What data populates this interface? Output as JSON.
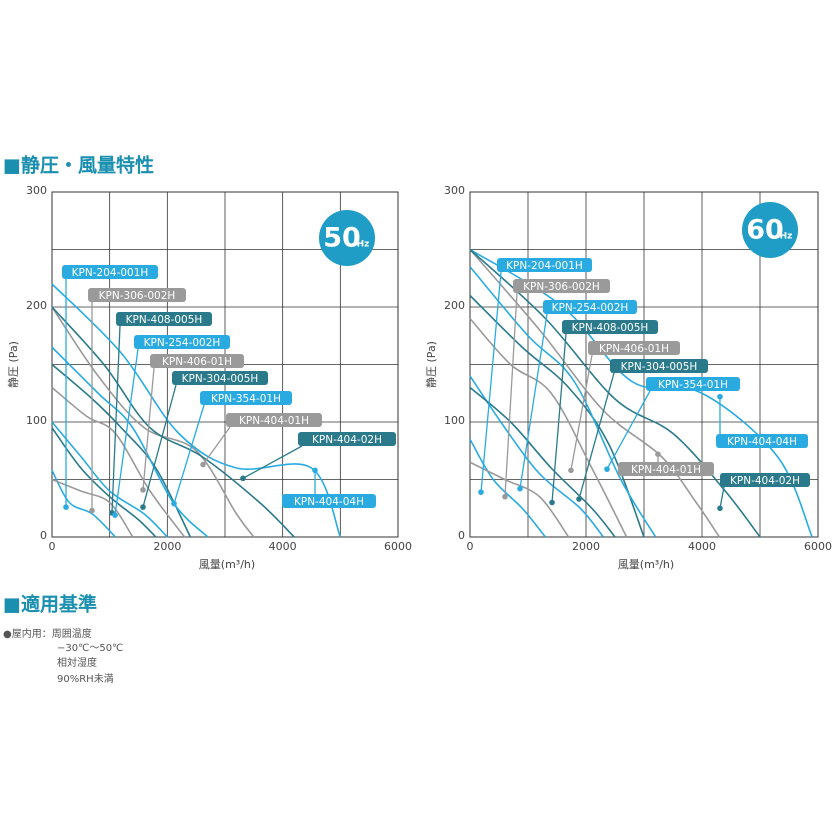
{
  "header": {
    "title": "■静圧・風量特性"
  },
  "chart_data": [
    {
      "type": "line",
      "badge": "50",
      "badge_unit": "Hz",
      "y_label": "静圧 (Pa)",
      "x_label": "風量(m³/h)",
      "xlim": [
        0,
        6000
      ],
      "ylim": [
        0,
        300
      ],
      "xticks": [
        0,
        2000,
        4000,
        6000
      ],
      "yticks": [
        0,
        100,
        200,
        300
      ],
      "xgrid": [
        1000,
        2000,
        3000,
        4000,
        5000
      ],
      "ygrid": [
        50,
        100,
        150,
        200,
        250
      ],
      "series": [
        {
          "name": "KPN-204-001H",
          "color": "#29abe2",
          "x": [
            0,
            300,
            700,
            1100
          ],
          "values": [
            58,
            30,
            20,
            0
          ],
          "marker": {
            "x": 243,
            "y": 26
          }
        },
        {
          "name": "KPN-306-002H",
          "color": "#9a9a9a",
          "x": [
            0,
            500,
            1000,
            1400
          ],
          "values": [
            50,
            40,
            30,
            0
          ],
          "marker": {
            "x": 694,
            "y": 23
          }
        },
        {
          "name": "KPN-408-005H",
          "color": "#2a7a8c",
          "x": [
            0,
            500,
            1000,
            1500,
            1800
          ],
          "values": [
            95,
            60,
            35,
            15,
            0
          ],
          "marker": {
            "x": 1040,
            "y": 21
          }
        },
        {
          "name": "KPN-254-002H",
          "color": "#29abe2",
          "x": [
            0,
            500,
            1000,
            1600,
            2000
          ],
          "values": [
            100,
            70,
            40,
            20,
            0
          ],
          "marker": {
            "x": 1093,
            "y": 19
          }
        },
        {
          "name": "KPN-406-01H",
          "color": "#9a9a9a",
          "x": [
            0,
            600,
            1100,
            1700,
            2300
          ],
          "values": [
            130,
            105,
            90,
            40,
            0
          ],
          "marker": {
            "x": 1578,
            "y": 41
          }
        },
        {
          "name": "KPN-304-005H",
          "color": "#2a7a8c",
          "x": [
            0,
            700,
            1200,
            1800,
            2400
          ],
          "values": [
            150,
            120,
            95,
            60,
            0
          ],
          "marker": {
            "x": 1578,
            "y": 26
          }
        },
        {
          "name": "KPN-354-01H",
          "color": "#29abe2",
          "x": [
            0,
            800,
            1400,
            2100,
            2700
          ],
          "values": [
            165,
            125,
            95,
            30,
            0
          ],
          "marker": {
            "x": 2116,
            "y": 29
          }
        },
        {
          "name": "KPN-404-01H",
          "color": "#9a9a9a",
          "x": [
            0,
            800,
            1600,
            2500,
            3200,
            3500
          ],
          "values": [
            200,
            140,
            95,
            75,
            20,
            0
          ],
          "marker": {
            "x": 2619,
            "y": 63
          }
        },
        {
          "name": "KPN-404-02H",
          "color": "#2a7a8c",
          "x": [
            0,
            900,
            1700,
            2600,
            3600,
            4200
          ],
          "values": [
            200,
            150,
            95,
            70,
            30,
            0
          ],
          "marker": {
            "x": 3312,
            "y": 51
          }
        },
        {
          "name": "KPN-404-04H",
          "color": "#29abe2",
          "x": [
            0,
            1200,
            2200,
            3200,
            4500,
            5000
          ],
          "values": [
            220,
            160,
            90,
            60,
            60,
            0
          ],
          "marker": {
            "x": 4561,
            "y": 58
          }
        }
      ]
    },
    {
      "type": "line",
      "badge": "60",
      "badge_unit": "Hz",
      "y_label": "静圧 (Pa)",
      "x_label": "風量(m³/h)",
      "xlim": [
        0,
        6000
      ],
      "ylim": [
        0,
        300
      ],
      "xticks": [
        0,
        2000,
        4000,
        6000
      ],
      "yticks": [
        0,
        100,
        200,
        300
      ],
      "xgrid": [
        1000,
        2000,
        3000,
        4000,
        5000
      ],
      "ygrid": [
        50,
        100,
        150,
        200,
        250
      ],
      "series": [
        {
          "name": "KPN-204-001H",
          "color": "#29abe2",
          "x": [
            0,
            400,
            900,
            1300
          ],
          "values": [
            85,
            50,
            25,
            0
          ],
          "marker": {
            "x": 190,
            "y": 39
          }
        },
        {
          "name": "KPN-306-002H",
          "color": "#9a9a9a",
          "x": [
            0,
            600,
            1200,
            1700
          ],
          "values": [
            65,
            50,
            35,
            0
          ],
          "marker": {
            "x": 603,
            "y": 35
          }
        },
        {
          "name": "KPN-254-002H",
          "color": "#29abe2",
          "x": [
            0,
            600,
            1200,
            1900,
            2300
          ],
          "values": [
            140,
            95,
            55,
            25,
            0
          ],
          "marker": {
            "x": 862,
            "y": 42
          }
        },
        {
          "name": "KPN-408-005H",
          "color": "#2a7a8c",
          "x": [
            0,
            700,
            1400,
            2100,
            2500
          ],
          "values": [
            130,
            100,
            60,
            25,
            0
          ],
          "marker": {
            "x": 1414,
            "y": 30
          }
        },
        {
          "name": "KPN-406-01H",
          "color": "#9a9a9a",
          "x": [
            0,
            700,
            1400,
            2100,
            2700
          ],
          "values": [
            190,
            150,
            125,
            60,
            0
          ],
          "marker": {
            "x": 1741,
            "y": 58
          }
        },
        {
          "name": "KPN-304-005H",
          "color": "#2a7a8c",
          "x": [
            0,
            900,
            1700,
            2400,
            3000
          ],
          "values": [
            210,
            165,
            130,
            80,
            0
          ],
          "marker": {
            "x": 1879,
            "y": 33
          }
        },
        {
          "name": "KPN-354-01H",
          "color": "#29abe2",
          "x": [
            0,
            1000,
            1800,
            2600,
            3200
          ],
          "values": [
            235,
            175,
            135,
            50,
            0
          ],
          "marker": {
            "x": 2362,
            "y": 59
          }
        },
        {
          "name": "KPN-404-04H",
          "color": "#29abe2",
          "x": [
            0,
            1600,
            2800,
            4000,
            5300,
            5900
          ],
          "values": [
            250,
            200,
            135,
            125,
            70,
            0
          ],
          "marker": {
            "x": 4310,
            "y": 122
          }
        },
        {
          "name": "KPN-404-01H",
          "color": "#9a9a9a",
          "x": [
            0,
            1200,
            2300,
            3300,
            3900,
            4300
          ],
          "values": [
            250,
            180,
            110,
            70,
            30,
            0
          ],
          "marker": {
            "x": 3241,
            "y": 72
          }
        },
        {
          "name": "KPN-404-02H",
          "color": "#2a7a8c",
          "x": [
            0,
            1300,
            2500,
            3500,
            4400,
            5000
          ],
          "values": [
            250,
            190,
            120,
            90,
            40,
            0
          ],
          "marker": {
            "x": 4310,
            "y": 25
          }
        }
      ]
    }
  ],
  "standards": {
    "title": "■適用基準",
    "lines": [
      "●屋内用：周囲温度",
      "−30℃〜50℃",
      "相対湿度",
      "90%RH未満"
    ]
  }
}
